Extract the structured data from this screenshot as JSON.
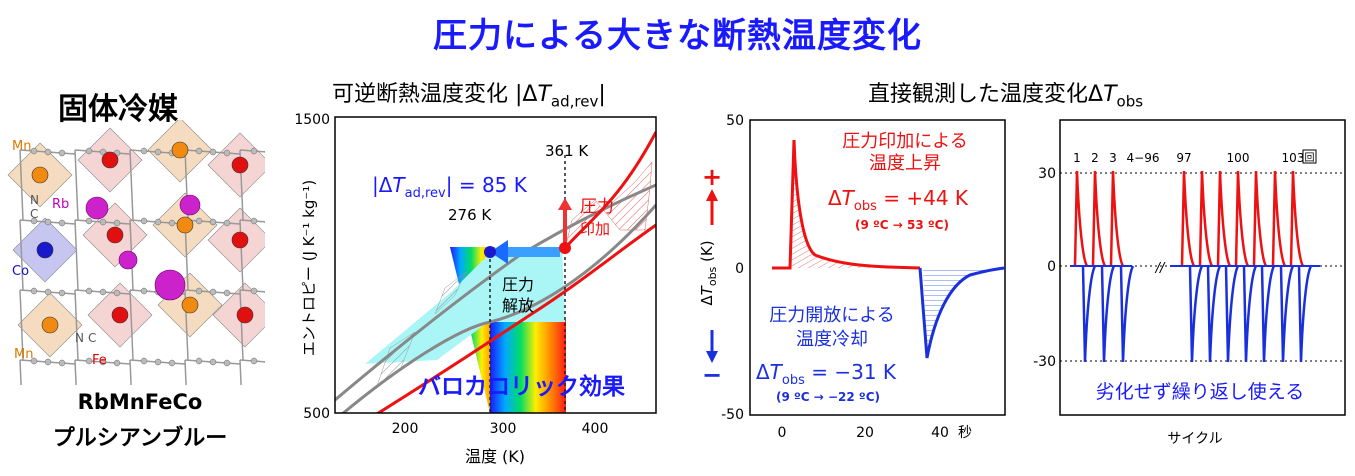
{
  "title": "圧力による大きな断熱温度変化",
  "left_panel": {
    "heading": "固体冷媒",
    "name": "RbMnFeCo",
    "subname": "プルシアンブルー",
    "atom_labels": {
      "mn_top": "Mn",
      "mn_bottom": "Mn",
      "rb": "Rb",
      "co": "Co",
      "fe": "Fe",
      "n_top": "N",
      "c_top": "C",
      "n_bottom": "N",
      "c_bottom": "C"
    }
  },
  "middle_panel": {
    "heading_prefix": "可逆断熱温度変化 |Δ",
    "heading_t": "T",
    "heading_sub": "ad,rev",
    "heading_suffix": "|",
    "ylabel": "エントロピー (J K⁻¹ kg⁻¹)",
    "xlabel": "温度 (K)",
    "y_top": "1500",
    "y_bottom": "500",
    "x_ticks": [
      "200",
      "300",
      "400"
    ],
    "annot_361": "361 K",
    "annot_276": "276 K",
    "delta_label_prefix": "|Δ",
    "delta_label_t": "T",
    "delta_label_sub": "ad,rev",
    "delta_label_suffix": "| = 85 K",
    "press_apply_1": "圧力",
    "press_apply_2": "印加",
    "press_release_1": "圧力",
    "press_release_2": "解放",
    "effect": "バロカロリック効果"
  },
  "right_heading": {
    "prefix": "直接観測した温度変化Δ",
    "t": "T",
    "sub": "obs"
  },
  "obs_chart": {
    "y_ticks": [
      "50",
      "0",
      "-50"
    ],
    "x_ticks": [
      "0",
      "20",
      "40"
    ],
    "x_unit": "秒",
    "ylabel_delta": "Δ",
    "ylabel_t": "T",
    "ylabel_sub": "obs",
    "ylabel_unit": " (K)",
    "plus": "+",
    "minus": "−",
    "heat_1": "圧力印加による",
    "heat_2": "温度上昇",
    "heat_val_prefix": "Δ",
    "heat_val_t": "T",
    "heat_val_sub": "obs",
    "heat_val_suffix": " = +44 K",
    "heat_range": "(9 ºC → 53 ºC)",
    "cool_1": "圧力開放による",
    "cool_2": "温度冷却",
    "cool_val_prefix": "Δ",
    "cool_val_t": "T",
    "cool_val_sub": "obs",
    "cool_val_suffix": " = −31 K",
    "cool_range": "(9 ºC → −22 ºC)"
  },
  "cycle_chart": {
    "y_ticks": [
      "30",
      "0",
      "-30"
    ],
    "cycle_labels": [
      "1",
      "2",
      "3",
      "4−96",
      "97",
      "100",
      "103"
    ],
    "cycle_unit": "回",
    "break_mark": "//",
    "xlabel": "サイクル",
    "caption": "劣化せず繰り返し使える"
  },
  "colors": {
    "accent_blue": "#1a1aff",
    "heat_red": "#ff0000",
    "cool_blue": "#0022dd"
  }
}
